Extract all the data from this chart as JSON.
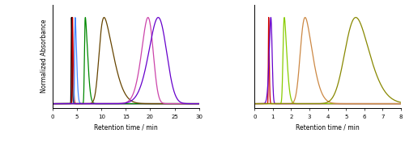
{
  "left_xlim": [
    0,
    30
  ],
  "right_xlim": [
    0,
    8
  ],
  "ylabel": "Normalized Absorbance",
  "xlabel": "Retention time / min",
  "left_peaks": [
    {
      "color": "#000000",
      "mu": 3.8,
      "sigma": 0.15,
      "skew": 3.0
    },
    {
      "color": "#cc0000",
      "mu": 4.0,
      "sigma": 0.18,
      "skew": 4.0
    },
    {
      "color": "#4488ff",
      "mu": 4.5,
      "sigma": 0.35,
      "skew": 5.0
    },
    {
      "color": "#008800",
      "mu": 6.5,
      "sigma": 0.6,
      "skew": 6.0
    },
    {
      "color": "#664400",
      "mu": 9.5,
      "sigma": 2.5,
      "skew": 4.0
    },
    {
      "color": "#cc44aa",
      "mu": 20.5,
      "sigma": 1.8,
      "skew": -2.0
    },
    {
      "color": "#6600cc",
      "mu": 23.0,
      "sigma": 2.5,
      "skew": -1.5
    }
  ],
  "right_peaks": [
    {
      "color": "#cc0000",
      "mu": 0.75,
      "sigma": 0.04,
      "skew": 3.0
    },
    {
      "color": "#6600cc",
      "mu": 0.95,
      "sigma": 0.12,
      "skew": -2.0
    },
    {
      "color": "#88cc00",
      "mu": 1.55,
      "sigma": 0.18,
      "skew": 4.0
    },
    {
      "color": "#cc8844",
      "mu": 2.5,
      "sigma": 0.55,
      "skew": 3.0
    },
    {
      "color": "#888800",
      "mu": 5.0,
      "sigma": 1.0,
      "skew": 2.0
    }
  ],
  "bg_color": "#ffffff"
}
